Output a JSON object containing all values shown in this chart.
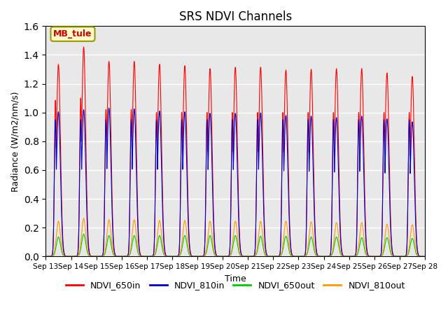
{
  "title": "SRS NDVI Channels",
  "xlabel": "Time",
  "ylabel": "Radiance (W/m2/nm/s)",
  "ylim": [
    0,
    1.6
  ],
  "annotation_text": "MB_tule",
  "annotation_color": "#cc0000",
  "annotation_bg": "#ffffcc",
  "annotation_border": "#999900",
  "series": [
    {
      "label": "NDVI_650in",
      "color": "#ff0000",
      "peak_values": [
        1.335,
        1.455,
        1.355,
        1.355,
        1.335,
        1.325,
        1.305,
        1.315,
        1.315,
        1.295,
        1.3,
        1.305,
        1.305,
        1.275,
        1.25
      ],
      "pre_peak_values": [
        1.085,
        1.1,
        1.02,
        1.02,
        1.0,
        1.0,
        1.0,
        1.0,
        1.0,
        1.0,
        1.0,
        1.0,
        1.0,
        1.0,
        1.0
      ]
    },
    {
      "label": "NDVI_810in",
      "color": "#0000cc",
      "peak_values": [
        1.005,
        1.02,
        1.03,
        1.025,
        1.01,
        1.005,
        0.995,
        0.995,
        0.998,
        0.98,
        0.975,
        0.965,
        0.975,
        0.955,
        0.935
      ],
      "pre_peak_values": [
        0.95,
        0.95,
        0.95,
        0.95,
        0.95,
        0.95,
        0.95,
        0.95,
        0.95,
        0.95,
        0.95,
        0.95,
        0.95,
        0.95,
        0.95
      ]
    },
    {
      "label": "NDVI_650out",
      "color": "#00cc00",
      "peak_values": [
        0.135,
        0.155,
        0.145,
        0.145,
        0.145,
        0.145,
        0.145,
        0.145,
        0.14,
        0.14,
        0.135,
        0.135,
        0.13,
        0.13,
        0.125
      ],
      "pre_peak_values": [
        0.0,
        0.0,
        0.0,
        0.0,
        0.0,
        0.0,
        0.0,
        0.0,
        0.0,
        0.0,
        0.0,
        0.0,
        0.0,
        0.0,
        0.0
      ]
    },
    {
      "label": "NDVI_810out",
      "color": "#ff9900",
      "peak_values": [
        0.245,
        0.265,
        0.255,
        0.255,
        0.25,
        0.25,
        0.245,
        0.245,
        0.245,
        0.245,
        0.24,
        0.235,
        0.235,
        0.225,
        0.22
      ],
      "pre_peak_values": [
        0.0,
        0.0,
        0.0,
        0.0,
        0.0,
        0.0,
        0.0,
        0.0,
        0.0,
        0.0,
        0.0,
        0.0,
        0.0,
        0.0,
        0.0
      ]
    }
  ],
  "bg_color": "#e8e8e8",
  "fig_color": "#ffffff",
  "grid_color": "#ffffff",
  "n_days": 15,
  "tick_labels": [
    "Sep 13",
    "Sep 14",
    "Sep 15",
    "Sep 16",
    "Sep 17",
    "Sep 18",
    "Sep 19",
    "Sep 20",
    "Sep 21",
    "Sep 22",
    "Sep 23",
    "Sep 24",
    "Sep 25",
    "Sep 26",
    "Sep 27",
    "Sep 28"
  ]
}
